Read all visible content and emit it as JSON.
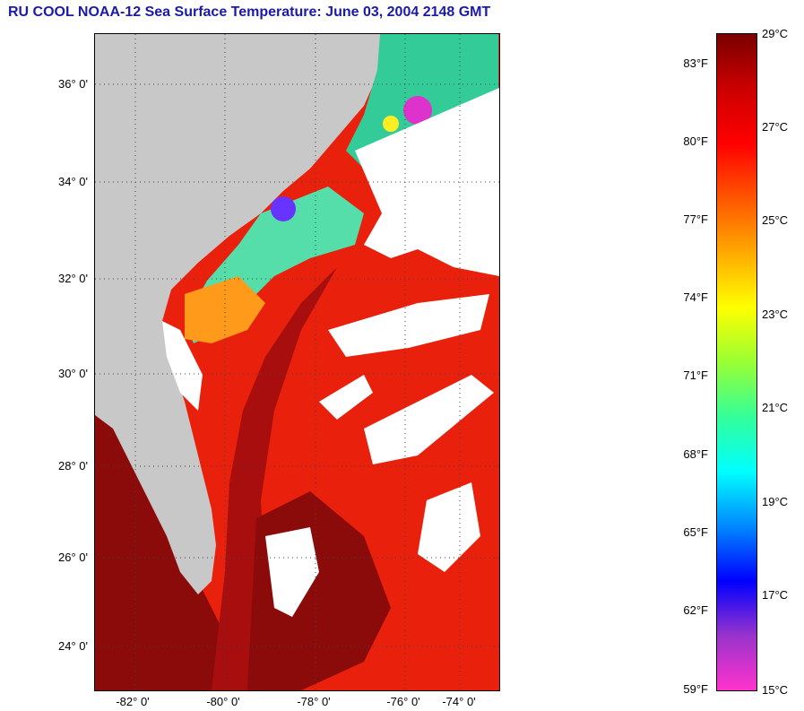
{
  "title": "RU COOL  NOAA-12  Sea Surface Temperature:  June 03, 2004 2148 GMT",
  "map": {
    "lat_labels": [
      "36° 0'",
      "34° 0'",
      "32° 0'",
      "30° 0'",
      "28° 0'",
      "26° 0'",
      "24° 0'"
    ],
    "lon_labels": [
      "-82° 0'",
      "-80° 0'",
      "-78° 0'",
      "-76° 0'",
      "-74° 0'"
    ],
    "colors": {
      "land": "#c8c8c8",
      "cloud": "#ffffff",
      "warm_ocean": "#e8200c",
      "hot_ocean": "#8b0a0a",
      "gulf_stream": "#a80e0e",
      "cool_shelf": "#ff9a1a"
    }
  },
  "colorbar": {
    "fahrenheit_labels": [
      "83°F",
      "80°F",
      "77°F",
      "74°F",
      "71°F",
      "68°F",
      "65°F",
      "62°F",
      "59°F"
    ],
    "celsius_labels": [
      "29°C",
      "27°C",
      "25°C",
      "23°C",
      "21°C",
      "19°C",
      "17°C",
      "15°C"
    ],
    "range_c": [
      15,
      29
    ],
    "gradient": [
      "#ff33cc",
      "#9933cc",
      "#0000ff",
      "#0088ff",
      "#00ffff",
      "#33ff99",
      "#99ff33",
      "#ffff00",
      "#ffaa00",
      "#ff5500",
      "#ff0000",
      "#cc0000",
      "#7a0000"
    ]
  }
}
